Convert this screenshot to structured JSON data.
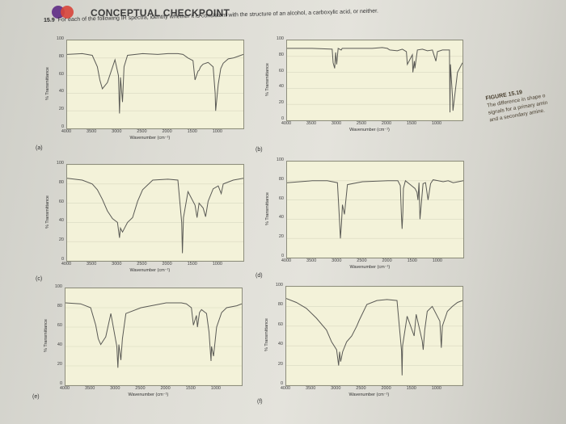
{
  "page": {
    "header": "CONCEPTUAL CHECKPOINT",
    "problem_number": "15.9",
    "problem_text": "For each of the following IR spectra, identify whether it is consistent with the structure of an alcohol, a carboxylic acid, or neither.",
    "figure_title": "FIGURE 15.19",
    "figure_caption_lines": [
      "The difference in shape o",
      "signals for a primary amin",
      "and a secondary amine."
    ]
  },
  "axes": {
    "ylabel": "% Transmittance",
    "xlabel": "Wavenumber (cm⁻¹)",
    "yticks": [
      "100",
      "80",
      "60",
      "40",
      "20",
      "0"
    ],
    "xticks": [
      "4000",
      "3500",
      "3000",
      "2500",
      "2000",
      "1500",
      "1000"
    ]
  },
  "colors": {
    "paper": "#e2e1da",
    "plot_bg": "#f3f2d9",
    "trace": "#5a5a55",
    "accent": "#6a3c8c"
  },
  "chart_data": [
    {
      "type": "line",
      "panel_label": "(a)",
      "xlim": [
        4000,
        500
      ],
      "ylim": [
        0,
        100
      ],
      "x": [
        4000,
        3700,
        3500,
        3400,
        3350,
        3300,
        3200,
        3050,
        2980,
        2960,
        2940,
        2900,
        2870,
        2800,
        2500,
        2200,
        2000,
        1800,
        1700,
        1600,
        1500,
        1460,
        1400,
        1380,
        1350,
        1300,
        1200,
        1100,
        1060,
        1050,
        1000,
        950,
        900,
        800,
        700,
        600,
        500
      ],
      "y": [
        84,
        85,
        83,
        70,
        55,
        45,
        52,
        78,
        60,
        17,
        58,
        30,
        70,
        83,
        85,
        84,
        85,
        85,
        84,
        80,
        77,
        55,
        65,
        66,
        70,
        73,
        75,
        70,
        40,
        20,
        50,
        68,
        74,
        79,
        80,
        82,
        84
      ]
    },
    {
      "type": "line",
      "panel_label": "(b)",
      "xlim": [
        4000,
        500
      ],
      "ylim": [
        0,
        100
      ],
      "x": [
        4000,
        3500,
        3100,
        3080,
        3050,
        3030,
        3010,
        2980,
        2920,
        2900,
        2300,
        2100,
        2000,
        1950,
        1800,
        1700,
        1620,
        1600,
        1500,
        1490,
        1460,
        1450,
        1400,
        1300,
        1200,
        1100,
        1080,
        1030,
        1000,
        900,
        760,
        750,
        740,
        700,
        690,
        600,
        500
      ],
      "y": [
        90,
        90,
        89,
        72,
        65,
        85,
        70,
        90,
        88,
        90,
        90,
        91,
        90,
        88,
        87,
        89,
        86,
        70,
        82,
        60,
        74,
        65,
        88,
        89,
        87,
        88,
        84,
        74,
        86,
        88,
        88,
        10,
        70,
        30,
        12,
        60,
        72
      ]
    },
    {
      "type": "line",
      "panel_label": "(c)",
      "xlim": [
        4000,
        500
      ],
      "ylim": [
        0,
        100
      ],
      "x": [
        4000,
        3700,
        3500,
        3400,
        3300,
        3200,
        3100,
        3000,
        2960,
        2940,
        2900,
        2800,
        2700,
        2600,
        2500,
        2300,
        2000,
        1800,
        1725,
        1710,
        1690,
        1600,
        1460,
        1420,
        1380,
        1300,
        1250,
        1200,
        1100,
        1000,
        940,
        900,
        800,
        700,
        600,
        500
      ],
      "y": [
        86,
        84,
        80,
        74,
        64,
        52,
        44,
        40,
        24,
        34,
        30,
        40,
        45,
        62,
        74,
        84,
        85,
        84,
        40,
        8,
        45,
        72,
        58,
        45,
        60,
        55,
        46,
        62,
        75,
        78,
        70,
        80,
        82,
        84,
        85,
        86
      ]
    },
    {
      "type": "line",
      "panel_label": "(d)",
      "xlim": [
        4000,
        500
      ],
      "ylim": [
        0,
        100
      ],
      "x": [
        4000,
        3500,
        3200,
        3000,
        2980,
        2960,
        2940,
        2920,
        2900,
        2860,
        2800,
        2500,
        2000,
        1800,
        1750,
        1730,
        1715,
        1700,
        1690,
        1650,
        1460,
        1420,
        1400,
        1380,
        1360,
        1300,
        1250,
        1200,
        1150,
        1100,
        1000,
        900,
        800,
        700,
        600,
        500
      ],
      "y": [
        78,
        80,
        80,
        78,
        60,
        40,
        20,
        35,
        55,
        45,
        76,
        79,
        80,
        80,
        75,
        45,
        30,
        48,
        72,
        80,
        72,
        68,
        60,
        78,
        40,
        77,
        78,
        60,
        77,
        81,
        80,
        79,
        80,
        78,
        79,
        80
      ]
    },
    {
      "type": "line",
      "panel_label": "(e)",
      "xlim": [
        4000,
        500
      ],
      "ylim": [
        0,
        100
      ],
      "x": [
        4000,
        3700,
        3500,
        3400,
        3350,
        3300,
        3200,
        3100,
        2980,
        2960,
        2940,
        2900,
        2870,
        2800,
        2500,
        2000,
        1700,
        1600,
        1500,
        1460,
        1400,
        1380,
        1340,
        1300,
        1200,
        1150,
        1110,
        1100,
        1060,
        1000,
        900,
        800,
        600,
        500
      ],
      "y": [
        85,
        84,
        80,
        62,
        48,
        42,
        50,
        74,
        40,
        18,
        42,
        26,
        48,
        74,
        80,
        85,
        85,
        84,
        80,
        62,
        72,
        60,
        75,
        78,
        74,
        55,
        25,
        40,
        30,
        60,
        75,
        80,
        82,
        84
      ]
    },
    {
      "type": "line",
      "panel_label": "(f)",
      "xlim": [
        4000,
        500
      ],
      "ylim": [
        0,
        100
      ],
      "x": [
        4000,
        3800,
        3600,
        3400,
        3200,
        3100,
        3000,
        2960,
        2940,
        2920,
        2880,
        2800,
        2700,
        2600,
        2550,
        2400,
        2200,
        2000,
        1800,
        1710,
        1700,
        1690,
        1600,
        1460,
        1420,
        1300,
        1280,
        1250,
        1200,
        1100,
        950,
        920,
        900,
        800,
        700,
        600,
        500
      ],
      "y": [
        88,
        84,
        78,
        68,
        56,
        44,
        36,
        20,
        34,
        24,
        34,
        44,
        50,
        60,
        66,
        82,
        86,
        87,
        86,
        35,
        10,
        40,
        70,
        50,
        72,
        45,
        36,
        56,
        75,
        80,
        65,
        38,
        60,
        75,
        80,
        84,
        86
      ]
    }
  ]
}
